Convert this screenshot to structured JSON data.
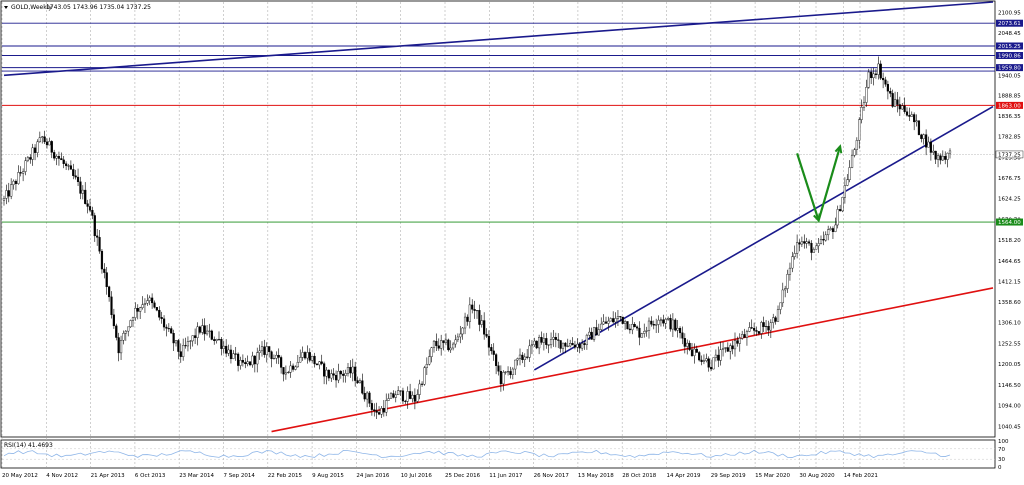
{
  "header": {
    "symbol": "GOLD,Weekly",
    "ohlc": "1743.05 1743.96 1735.04 1737.25"
  },
  "rsi_label": "RSI(14) 41.4693",
  "chart_data": {
    "type": "candlestick",
    "timeframe": "Weekly",
    "current_price": 1737.25,
    "ylim": [
      1013,
      2128
    ],
    "y_ticks": [
      2100.95,
      2048.45,
      1940.05,
      1888.85,
      1836.35,
      1782.85,
      1729.5,
      1676.75,
      1624.25,
      1570.7,
      1518.2,
      1464.65,
      1412.15,
      1358.6,
      1306.1,
      1252.55,
      1200.05,
      1146.5,
      1094.0,
      1040.45
    ],
    "x_ticks": [
      "20 May 2012",
      "4 Nov 2012",
      "21 Apr 2013",
      "6 Oct 2013",
      "23 Mar 2014",
      "7 Sep 2014",
      "22 Feb 2015",
      "9 Aug 2015",
      "24 Jan 2016",
      "10 Jul 2016",
      "25 Dec 2016",
      "11 Jun 2017",
      "26 Nov 2017",
      "13 May 2018",
      "28 Oct 2018",
      "14 Apr 2019",
      "29 Sep 2019",
      "15 Mar 2020",
      "30 Aug 2020",
      "14 Feb 2021"
    ],
    "price_path": [
      [
        0,
        1620
      ],
      [
        4,
        1700
      ],
      [
        8,
        1780
      ],
      [
        12,
        1720
      ],
      [
        15,
        1670
      ],
      [
        18,
        1600
      ],
      [
        21,
        1430
      ],
      [
        24,
        1240
      ],
      [
        27,
        1330
      ],
      [
        30,
        1370
      ],
      [
        33,
        1310
      ],
      [
        37,
        1225
      ],
      [
        41,
        1290
      ],
      [
        45,
        1260
      ],
      [
        50,
        1190
      ],
      [
        55,
        1240
      ],
      [
        59,
        1180
      ],
      [
        63,
        1230
      ],
      [
        68,
        1170
      ],
      [
        73,
        1180
      ],
      [
        78,
        1070
      ],
      [
        82,
        1125
      ],
      [
        86,
        1110
      ],
      [
        90,
        1250
      ],
      [
        94,
        1245
      ],
      [
        98,
        1350
      ],
      [
        100,
        1300
      ],
      [
        104,
        1160
      ],
      [
        108,
        1210
      ],
      [
        112,
        1260
      ],
      [
        116,
        1255
      ],
      [
        121,
        1250
      ],
      [
        125,
        1300
      ],
      [
        129,
        1320
      ],
      [
        133,
        1280
      ],
      [
        137,
        1320
      ],
      [
        140,
        1300
      ],
      [
        144,
        1235
      ],
      [
        148,
        1200
      ],
      [
        152,
        1245
      ],
      [
        156,
        1280
      ],
      [
        160,
        1300
      ],
      [
        162,
        1330
      ],
      [
        166,
        1520
      ],
      [
        170,
        1490
      ],
      [
        174,
        1560
      ],
      [
        178,
        1750
      ],
      [
        181,
        1940
      ],
      [
        183,
        1960
      ],
      [
        186,
        1870
      ],
      [
        189,
        1850
      ],
      [
        192,
        1790
      ],
      [
        195,
        1730
      ],
      [
        198,
        1737.25
      ]
    ],
    "rsi_last": 41.4693,
    "rsi_levels": [
      100,
      70,
      30,
      0
    ],
    "levels": [
      {
        "value": 2073.61,
        "label": "2073.61",
        "color": "#1a1a8c"
      },
      {
        "value": 2015.25,
        "label": "2015.25",
        "color": "#1a1a8c"
      },
      {
        "value": 1990.86,
        "label": "1990.86",
        "color": "#1a1a8c"
      },
      {
        "value": 1959.8,
        "label": "1959.80",
        "color": "#1a1a8c"
      },
      {
        "value": 1951.0,
        "label": "",
        "color": "#1a1a8c"
      },
      {
        "value": 1863.0,
        "label": "1863.00",
        "color": "#e01010"
      },
      {
        "value": 1564.0,
        "label": "1564.00",
        "color": "#1a8c1a"
      },
      {
        "value": 1737.25,
        "label": "1737.25",
        "color": "#000000"
      }
    ],
    "trendlines": [
      {
        "from": [
          0,
          1940
        ],
        "to": [
          207,
          2128
        ],
        "color": "#1a1a8c"
      },
      {
        "from": [
          111,
          1185
        ],
        "to": [
          207,
          1860
        ],
        "color": "#1a1a8c"
      },
      {
        "from": [
          56,
          1027
        ],
        "to": [
          207,
          1395
        ],
        "color": "#e01010"
      }
    ],
    "arrows": [
      {
        "from": [
          166,
          1740
        ],
        "to": [
          170.5,
          1568
        ],
        "color": "#1a8c1a"
      },
      {
        "from": [
          170.5,
          1568
        ],
        "to": [
          175,
          1758
        ],
        "color": "#1a8c1a"
      }
    ],
    "colors": {
      "candle": "#000000",
      "rsi": "#8fb6e8",
      "grid": "#b0b0b0",
      "label_bg_blue": "#1a1a8c",
      "label_bg_red": "#e01010",
      "label_bg_green": "#1a8c1a"
    }
  }
}
